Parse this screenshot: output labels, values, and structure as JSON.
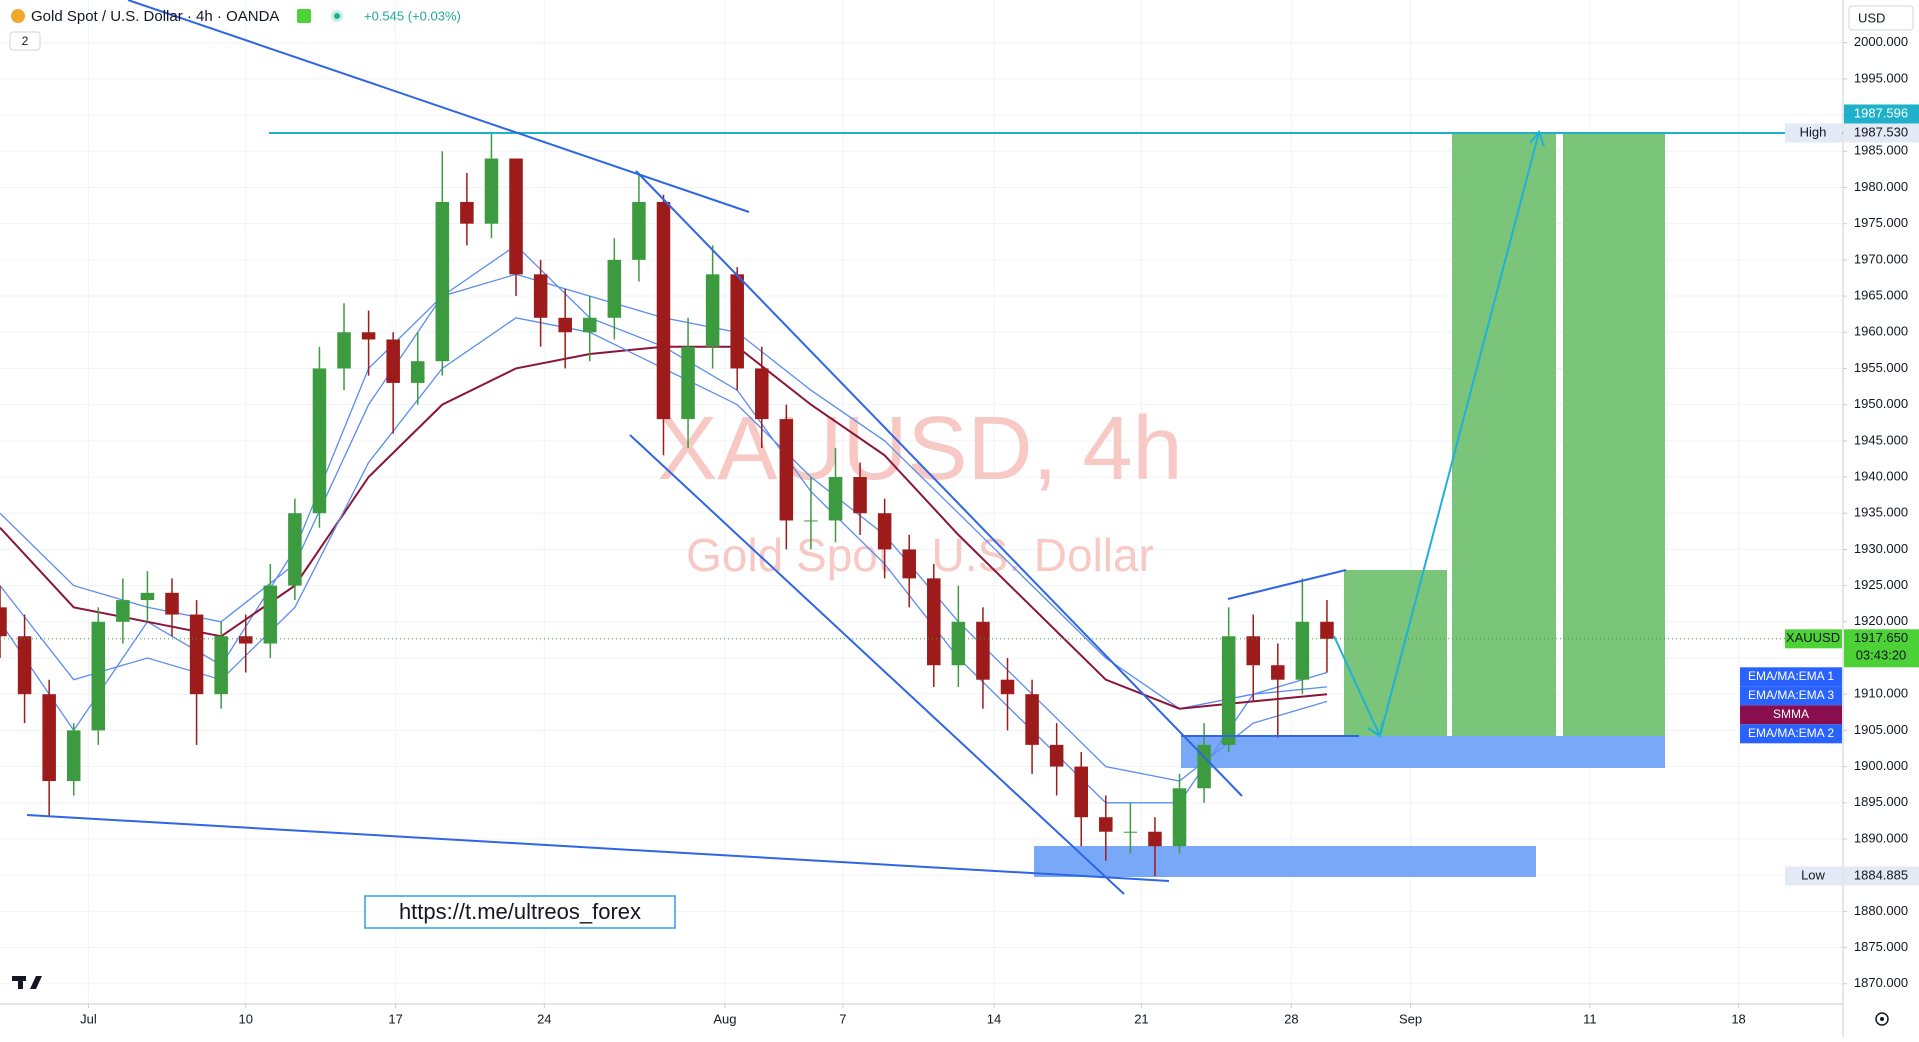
{
  "ui": {
    "symbol": "Gold Spot / U.S. Dollar · 4h · OANDA",
    "change": "+0.545 (+0.03%)",
    "badge": "2",
    "currency": "USD",
    "link": "https://t.me/ultreos_forex"
  },
  "chart_data": {
    "type": "candlestick",
    "title": "XAUUSD, 4h",
    "subtitle": "Gold Spot · U.S. Dollar",
    "up_color": "#3d9b3f",
    "down_color": "#9e1b1b",
    "grid": true,
    "xlim": [
      0,
      150
    ],
    "xticks": [
      {
        "value": 7.2,
        "label": "Jul"
      },
      {
        "value": 20,
        "label": "10"
      },
      {
        "value": 32.2,
        "label": "17"
      },
      {
        "value": 44.3,
        "label": "24"
      },
      {
        "value": 59,
        "label": "Aug"
      },
      {
        "value": 68.6,
        "label": "7"
      },
      {
        "value": 80.9,
        "label": "14"
      },
      {
        "value": 92.9,
        "label": "21"
      },
      {
        "value": 105.1,
        "label": "28"
      },
      {
        "value": 114.8,
        "label": "Sep"
      },
      {
        "value": 129.4,
        "label": "11"
      },
      {
        "value": 141.5,
        "label": "18"
      }
    ],
    "ylim": [
      1867.2,
      2005.9
    ],
    "yticks": [
      {
        "value": 1870,
        "label": "1870.000"
      },
      {
        "value": 1875,
        "label": "1875.000"
      },
      {
        "value": 1880,
        "label": "1880.000"
      },
      {
        "value": 1885,
        "label": "1885.000"
      },
      {
        "value": 1890,
        "label": "1890.000"
      },
      {
        "value": 1895,
        "label": "1895.000"
      },
      {
        "value": 1900,
        "label": "1900.000"
      },
      {
        "value": 1905,
        "label": "1905.000"
      },
      {
        "value": 1910,
        "label": "1910.000"
      },
      {
        "value": 1915,
        "label": "1915.000"
      },
      {
        "value": 1920,
        "label": "1920.000"
      },
      {
        "value": 1925,
        "label": "1925.000"
      },
      {
        "value": 1930,
        "label": "1930.000"
      },
      {
        "value": 1935,
        "label": "1935.000"
      },
      {
        "value": 1940,
        "label": "1940.000"
      },
      {
        "value": 1945,
        "label": "1945.000"
      },
      {
        "value": 1950,
        "label": "1950.000"
      },
      {
        "value": 1955,
        "label": "1955.000"
      },
      {
        "value": 1960,
        "label": "1960.000"
      },
      {
        "value": 1965,
        "label": "1965.000"
      },
      {
        "value": 1970,
        "label": "1970.000"
      },
      {
        "value": 1975,
        "label": "1975.000"
      },
      {
        "value": 1980,
        "label": "1980.000"
      },
      {
        "value": 1985,
        "label": "1985.000"
      },
      {
        "value": 1990,
        "label": "1990.000"
      },
      {
        "value": 1995,
        "label": "1995.000"
      },
      {
        "value": 2000,
        "label": "2000.000"
      }
    ],
    "x": [
      0,
      2,
      4,
      6,
      8,
      10,
      12,
      14,
      16,
      18,
      20,
      22,
      24,
      26,
      28,
      30,
      32,
      34,
      36,
      38,
      40,
      42,
      44,
      46,
      48,
      50,
      52,
      54,
      56,
      58,
      60,
      62,
      64,
      66,
      68,
      70,
      72,
      74,
      76,
      78,
      80,
      82,
      84,
      86,
      88,
      90,
      92,
      94,
      96,
      98,
      100,
      102,
      104,
      106,
      108
    ],
    "open": [
      1922,
      1918,
      1910,
      1898,
      1905,
      1920,
      1923,
      1924,
      1921,
      1910,
      1918,
      1917,
      1925,
      1935,
      1955,
      1960,
      1959,
      1953,
      1956,
      1978,
      1975,
      1984,
      1968,
      1962,
      1960,
      1962,
      1970,
      1978,
      1948,
      1958,
      1968,
      1955,
      1948,
      1934,
      1934,
      1940,
      1935,
      1930,
      1926,
      1914,
      1920,
      1912,
      1910,
      1903,
      1900,
      1893,
      1891,
      1891,
      1889,
      1897,
      1903,
      1918,
      1914,
      1912,
      1920
    ],
    "high": [
      1925,
      1921,
      1912,
      1906,
      1922,
      1926,
      1927,
      1926,
      1923,
      1920,
      1921,
      1928,
      1937,
      1958,
      1964,
      1963,
      1960,
      1960,
      1985,
      1982,
      1987.53,
      1984,
      1970,
      1966,
      1965,
      1973,
      1982,
      1979,
      1962,
      1972,
      1969,
      1958,
      1950,
      1940,
      1944,
      1942,
      1937,
      1932,
      1928,
      1925,
      1922,
      1915,
      1912,
      1906,
      1902,
      1896,
      1895,
      1893,
      1899,
      1906,
      1922,
      1921,
      1917,
      1926,
      1923
    ],
    "low": [
      1915,
      1906,
      1893,
      1896,
      1903,
      1917,
      1920,
      1918,
      1903,
      1908,
      1913,
      1915,
      1923,
      1933,
      1952,
      1954,
      1946,
      1950,
      1954,
      1972,
      1973,
      1965,
      1958,
      1955,
      1956,
      1959,
      1967,
      1943,
      1944,
      1955,
      1952,
      1944,
      1930,
      1930,
      1931,
      1932,
      1926,
      1922,
      1911,
      1911,
      1908,
      1905,
      1899,
      1896,
      1889,
      1887,
      1888,
      1884.885,
      1888,
      1895,
      1902,
      1909,
      1904,
      1910,
      1913
    ],
    "close": [
      1918,
      1910,
      1898,
      1905,
      1920,
      1923,
      1924,
      1921,
      1910,
      1918,
      1917,
      1925,
      1935,
      1955,
      1960,
      1959,
      1953,
      1956,
      1978,
      1975,
      1984,
      1968,
      1962,
      1960,
      1962,
      1970,
      1978,
      1948,
      1958,
      1968,
      1955,
      1948,
      1934,
      1934,
      1940,
      1935,
      1930,
      1926,
      1914,
      1920,
      1912,
      1910,
      1903,
      1900,
      1893,
      1891,
      1891,
      1889,
      1897,
      1903,
      1918,
      1914,
      1912,
      1920,
      1917.65
    ],
    "series": [
      {
        "name": "EMA/MA:EMA 1",
        "color": "#5b8def",
        "tag_color": "#2962ff",
        "x": [
          0,
          6,
          12,
          18,
          24,
          30,
          36,
          42,
          48,
          54,
          60,
          66,
          72,
          78,
          84,
          90,
          96,
          102,
          108
        ],
        "values": [
          1920,
          1905,
          1920,
          1914,
          1930,
          1955,
          1965,
          1972,
          1962,
          1958,
          1952,
          1938,
          1928,
          1915,
          1905,
          1895,
          1895,
          1910,
          1913
        ]
      },
      {
        "name": "EMA/MA:EMA 3",
        "color": "#5b8def",
        "tag_color": "#2962ff",
        "x": [
          0,
          6,
          12,
          18,
          24,
          30,
          36,
          42,
          48,
          54,
          60,
          66,
          72,
          78,
          84,
          90,
          96,
          102,
          108
        ],
        "values": [
          1935,
          1925,
          1922,
          1920,
          1928,
          1950,
          1965,
          1968,
          1965,
          1962,
          1960,
          1952,
          1945,
          1935,
          1925,
          1915,
          1908,
          1910,
          1911
        ]
      },
      {
        "name": "SMMA",
        "color": "#8b1538",
        "tag_color": "#880e4f",
        "x": [
          0,
          6,
          12,
          18,
          24,
          30,
          36,
          42,
          48,
          54,
          60,
          66,
          72,
          78,
          84,
          90,
          96,
          102,
          108
        ],
        "values": [
          1933,
          1922,
          1920,
          1918,
          1925,
          1940,
          1950,
          1955,
          1957,
          1958,
          1958,
          1950,
          1943,
          1932,
          1922,
          1912,
          1908,
          1909,
          1910
        ]
      },
      {
        "name": "EMA/MA:EMA 2",
        "color": "#5b8def",
        "tag_color": "#2962ff",
        "x": [
          0,
          6,
          12,
          18,
          24,
          30,
          36,
          42,
          48,
          54,
          60,
          66,
          72,
          78,
          84,
          90,
          96,
          102,
          108
        ],
        "values": [
          1925,
          1912,
          1915,
          1912,
          1922,
          1942,
          1955,
          1962,
          1960,
          1955,
          1950,
          1940,
          1932,
          1920,
          1910,
          1900,
          1898,
          1906,
          1909
        ]
      }
    ],
    "price_tags": [
      {
        "name": "High",
        "value": 1987.53,
        "label": "1987.530",
        "color": "#e3eaf5"
      },
      {
        "name": "XAUUSD",
        "value": 1917.65,
        "label": "1917.650",
        "sub": "03:43:20",
        "color": "#4cd137"
      },
      {
        "name": "Low",
        "value": 1884.885,
        "label": "1884.885",
        "color": "#e3eaf5"
      },
      {
        "value": 1987.596,
        "label": "1987.596",
        "color": "#1fb1c9"
      }
    ]
  }
}
